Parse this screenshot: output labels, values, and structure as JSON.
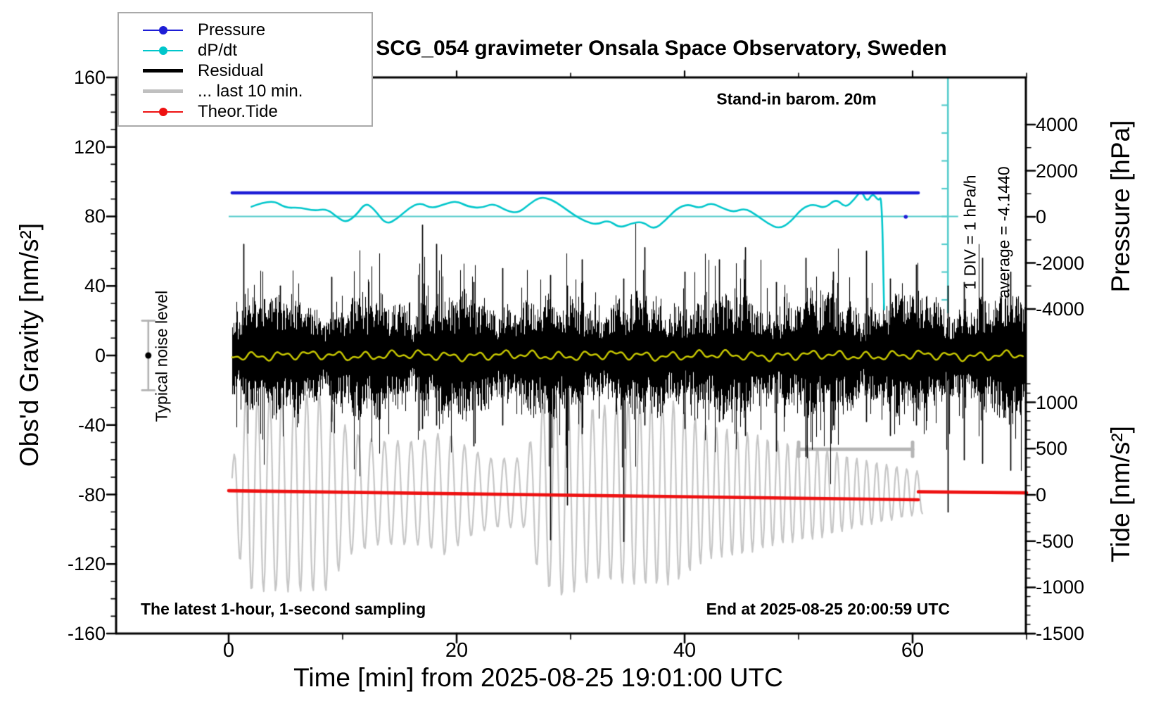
{
  "title": "SCG_054 gravimeter Onsala Space Observatory, Sweden",
  "annotations": {
    "barometer_note": "Stand-in barom. 20m",
    "sampling_note": "The latest 1-hour, 1-second sampling",
    "end_note": "End at 2025-08-25 20:00:59 UTC",
    "noise_level_note": "Typical noise level",
    "div_scale_note": "1 DIV = 1 hPa/h",
    "average_note": "average = -4.1440"
  },
  "axes": {
    "x": {
      "label": "Time [min] from 2025-08-25 19:01:00 UTC",
      "ticks": [
        0,
        20,
        40,
        60
      ],
      "minor_ticks": [
        10,
        30,
        50,
        70
      ],
      "range": [
        -9.9,
        70
      ]
    },
    "gravity": {
      "label": "Obs'd Gravity [nm/s²]",
      "ticks": [
        160,
        120,
        80,
        40,
        0,
        -40,
        -80,
        -120,
        -160
      ],
      "minor_step": 10,
      "range": [
        -160,
        160
      ]
    },
    "pressure": {
      "label": "Pressure [hPa]",
      "ticks": [
        4000,
        2000,
        0,
        -2000,
        -4000
      ],
      "minor_step": 1000,
      "range": [
        -4000,
        4000
      ]
    },
    "tide": {
      "label": "Tide [nm/s²]",
      "ticks": [
        1000,
        500,
        0,
        -500,
        -1000,
        -1500
      ],
      "minor_step": 100,
      "range": [
        -1500,
        1000
      ]
    }
  },
  "legend": {
    "entries": [
      {
        "label": "Pressure",
        "color": "#1d1dd6",
        "thickness": 2,
        "dot": true
      },
      {
        "label": "dP/dt",
        "color": "#00c6cb",
        "thickness": 2,
        "dot": true
      },
      {
        "label": "Residual",
        "color": "#000000",
        "thickness": 5,
        "dot": false
      },
      {
        "label": "... last 10 min.",
        "color": "#c0c0c0",
        "thickness": 5,
        "dot": false
      },
      {
        "label": "Theor.Tide",
        "color": "#ee1111",
        "thickness": 2,
        "dot": true
      }
    ]
  },
  "chart_data": {
    "type": "line",
    "x_unit": "minutes",
    "series": [
      {
        "name": "Pressure",
        "axis": "pressure",
        "color": "#1d1dd6",
        "width": 4.6,
        "points": [
          [
            0.3,
            1040
          ],
          [
            60.5,
            1040
          ]
        ],
        "end_dot": {
          "t": 59.4,
          "pressure": 0
        }
      },
      {
        "name": "dP/dt",
        "axis": "div",
        "color": "#00c6cb",
        "width": 2.6,
        "zero_at_gravity": 80,
        "div_is": "1 hPa/h",
        "points": [
          [
            2,
            0.35
          ],
          [
            3.7,
            0.63
          ],
          [
            5,
            0.3
          ],
          [
            6.2,
            0.33
          ],
          [
            7.5,
            0.2
          ],
          [
            8.6,
            0.28
          ],
          [
            9.6,
            -0.05
          ],
          [
            10.3,
            -0.22
          ],
          [
            11.2,
            0.05
          ],
          [
            12,
            0.5
          ],
          [
            12.8,
            0.25
          ],
          [
            13.8,
            -0.3
          ],
          [
            14.8,
            -0.08
          ],
          [
            15.8,
            0.3
          ],
          [
            16.8,
            0.5
          ],
          [
            17.8,
            0.28
          ],
          [
            19,
            0.45
          ],
          [
            20,
            0.56
          ],
          [
            21,
            0.35
          ],
          [
            22.2,
            0.3
          ],
          [
            23.2,
            0.48
          ],
          [
            24.4,
            0.2
          ],
          [
            25.4,
            0.12
          ],
          [
            26.4,
            0.45
          ],
          [
            27.3,
            0.7
          ],
          [
            28.3,
            0.62
          ],
          [
            29.3,
            0.35
          ],
          [
            30.3,
            0.05
          ],
          [
            31.3,
            -0.18
          ],
          [
            32.3,
            -0.3
          ],
          [
            33.3,
            -0.12
          ],
          [
            34.3,
            -0.42
          ],
          [
            35.3,
            -0.25
          ],
          [
            36.3,
            -0.18
          ],
          [
            37.3,
            -0.48
          ],
          [
            38.3,
            -0.15
          ],
          [
            39.3,
            0.28
          ],
          [
            40.3,
            0.45
          ],
          [
            41.3,
            0.28
          ],
          [
            42.3,
            0.5
          ],
          [
            43.3,
            0.3
          ],
          [
            44.3,
            0.15
          ],
          [
            45.3,
            0.3
          ],
          [
            46.3,
            0.05
          ],
          [
            47.3,
            -0.25
          ],
          [
            48.3,
            -0.45
          ],
          [
            49.3,
            -0.2
          ],
          [
            50.3,
            0.3
          ],
          [
            51.3,
            0.45
          ],
          [
            52.3,
            0.28
          ],
          [
            53.3,
            0.65
          ],
          [
            54.1,
            0.3
          ],
          [
            54.9,
            0.62
          ],
          [
            55.5,
            0.95
          ],
          [
            56,
            0.5
          ],
          [
            56.5,
            0.85
          ],
          [
            57,
            0.55
          ],
          [
            57.3,
            0.75
          ],
          [
            57.5,
            -3.35
          ]
        ]
      },
      {
        "name": "Residual",
        "axis": "gravity",
        "color": "#000000",
        "style": "noise",
        "t_start": 0.3,
        "t_end": 69.9,
        "seed": 42,
        "typical_band": 25,
        "spike_band": 65,
        "spikes": [
          [
            1.3,
            64,
            22
          ],
          [
            4.5,
            40,
            30
          ],
          [
            9,
            45,
            38
          ],
          [
            17,
            75,
            42
          ],
          [
            18.2,
            64,
            40
          ],
          [
            21.5,
            42,
            52
          ],
          [
            24,
            50,
            40
          ],
          [
            28.2,
            46,
            106
          ],
          [
            29.7,
            40,
            86
          ],
          [
            31,
            55,
            45
          ],
          [
            34.6,
            44,
            107
          ],
          [
            36.5,
            62,
            40
          ],
          [
            40,
            48,
            42
          ],
          [
            43,
            55,
            38
          ],
          [
            45.3,
            62,
            46
          ],
          [
            48,
            42,
            55
          ],
          [
            50.6,
            56,
            58
          ],
          [
            53,
            48,
            40
          ],
          [
            55.9,
            60,
            38
          ],
          [
            58,
            44,
            46
          ],
          [
            60.3,
            52,
            40
          ],
          [
            63.1,
            40,
            90
          ],
          [
            64.5,
            42,
            60
          ],
          [
            66.1,
            56,
            62
          ],
          [
            68.6,
            48,
            66
          ]
        ]
      },
      {
        "name": "Residual last 10 min (magnified)",
        "axis": "gravity",
        "color": "#c6c6c6",
        "style": "wave",
        "t_start": 0.3,
        "t_end": 60.9,
        "center": -79,
        "envelope": [
          [
            0.3,
            16
          ],
          [
            1.5,
            57
          ],
          [
            8.5,
            57
          ],
          [
            10.5,
            36
          ],
          [
            13,
            30
          ],
          [
            17,
            30
          ],
          [
            19,
            36
          ],
          [
            21,
            26
          ],
          [
            23,
            20
          ],
          [
            26,
            20
          ],
          [
            27.5,
            53
          ],
          [
            29.5,
            61
          ],
          [
            32,
            49
          ],
          [
            35,
            53
          ],
          [
            39,
            53
          ],
          [
            42,
            38
          ],
          [
            45,
            36
          ],
          [
            48,
            30
          ],
          [
            52,
            26
          ],
          [
            55,
            20
          ],
          [
            58,
            16
          ],
          [
            60.8,
            12
          ]
        ]
      },
      {
        "name": "Residual smoothed",
        "axis": "gravity",
        "color": "#c9c900",
        "width": 2.4,
        "style": "smooth-wiggle",
        "center": 0,
        "amplitude": 2.5,
        "t_start": 0.3,
        "t_end": 69.8
      },
      {
        "name": "Theor.Tide",
        "axis": "tide",
        "color": "#ee1111",
        "width": 4.6,
        "segments": [
          [
            [
              0,
              45
            ],
            [
              60.5,
              -53
            ]
          ],
          [
            [
              60.5,
              33
            ],
            [
              70,
              22
            ]
          ]
        ]
      }
    ],
    "markers": {
      "noise_level_bar": {
        "t": -7.05,
        "gravity_center": 0,
        "gravity_half_range": 20,
        "color": "#b2b2b2"
      },
      "last10_bar": {
        "t0": 50,
        "t1": 60,
        "gravity": -54,
        "color": "#b5b5b5"
      },
      "dpdt_ruler": {
        "t": 63.1,
        "n_div_ticks": 8,
        "color": "#55cccc"
      },
      "dpdt_zero_line": {
        "gravity": 80,
        "t0": 0,
        "t1": 64,
        "color": "#55cccc"
      }
    }
  }
}
